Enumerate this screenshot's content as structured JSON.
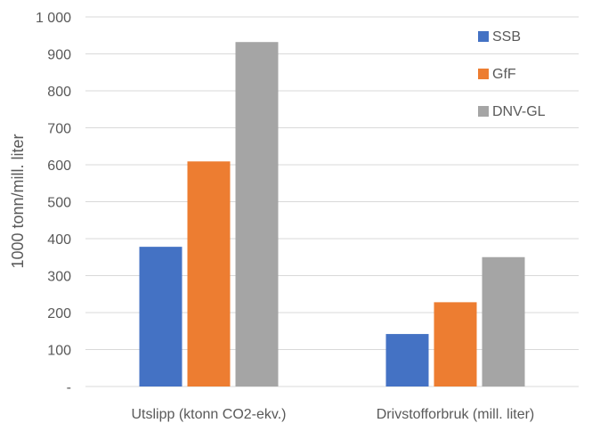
{
  "chart_data": {
    "type": "bar",
    "categories": [
      "Utslipp (ktonn CO2-ekv.)",
      "Drivstofforbruk (mill. liter)"
    ],
    "series": [
      {
        "name": "SSB",
        "values": [
          378,
          142
        ],
        "color": "#4472C4"
      },
      {
        "name": "GfF",
        "values": [
          609,
          228
        ],
        "color": "#ED7D31"
      },
      {
        "name": "DNV-GL",
        "values": [
          932,
          350
        ],
        "color": "#A5A5A5"
      }
    ],
    "ylabel": "1000 tonn/mill. liter",
    "xlabel": "",
    "ylim": [
      0,
      1000
    ],
    "yticks": [
      {
        "value": 0,
        "label": "-"
      },
      {
        "value": 100,
        "label": "100"
      },
      {
        "value": 200,
        "label": "200"
      },
      {
        "value": 300,
        "label": "300"
      },
      {
        "value": 400,
        "label": "400"
      },
      {
        "value": 500,
        "label": "500"
      },
      {
        "value": 600,
        "label": "600"
      },
      {
        "value": 700,
        "label": "700"
      },
      {
        "value": 800,
        "label": "800"
      },
      {
        "value": 900,
        "label": "900"
      },
      {
        "value": 1000,
        "label": "1 000"
      }
    ],
    "grid": true,
    "gridColor": "#D9D9D9",
    "legend_position": "top-right"
  }
}
